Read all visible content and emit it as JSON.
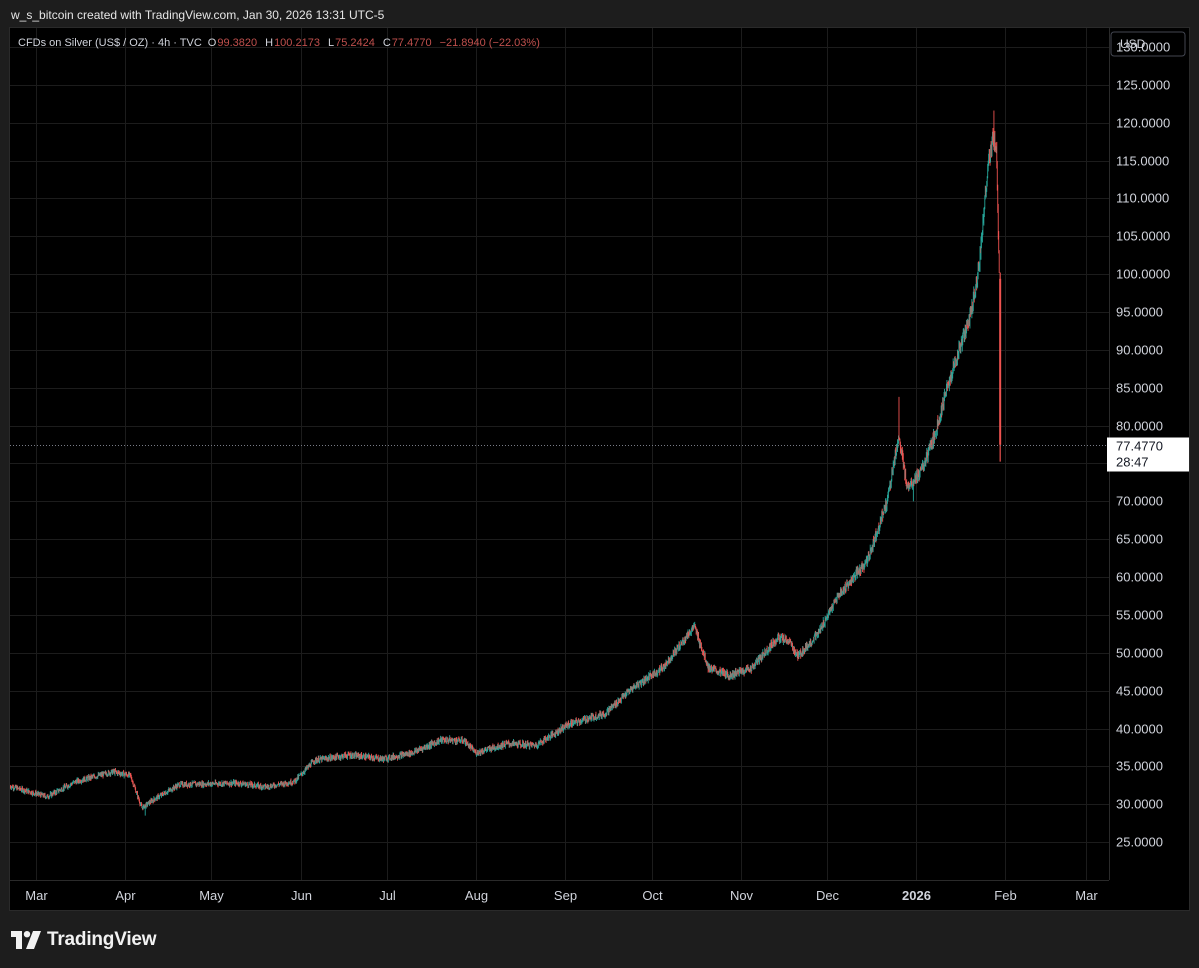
{
  "attribution": "w_s_bitcoin created with TradingView.com, Jan 30, 2026 13:31 UTC-5",
  "legend": {
    "symbol": "CFDs on Silver (US$ / OZ) · 4h · TVC",
    "o_label": "O",
    "o_value": "99.3820",
    "h_label": "H",
    "h_value": "100.2173",
    "l_label": "L",
    "l_value": "75.2424",
    "c_label": "C",
    "c_value": "77.4770",
    "change": "−21.8940 (−22.03%)"
  },
  "currency_button": "USD",
  "last_price": {
    "value": "77.4770",
    "countdown": "28:47"
  },
  "brand": "TradingView",
  "colors": {
    "up": "#26a69a",
    "down": "#ef5350",
    "grid": "#1c1c1c",
    "axis_text": "#d1d4dc",
    "legend_value": "#c0504d"
  },
  "chart_data": {
    "type": "candlestick",
    "title": "CFDs on Silver (US$ / OZ) · 4h · TVC",
    "ylabel": "USD",
    "ylim": [
      20,
      132.5
    ],
    "y_ticks": [
      "25.0000",
      "30.0000",
      "35.0000",
      "40.0000",
      "45.0000",
      "50.0000",
      "55.0000",
      "60.0000",
      "65.0000",
      "70.0000",
      "75.0000",
      "80.0000",
      "85.0000",
      "90.0000",
      "95.0000",
      "100.0000",
      "105.0000",
      "110.0000",
      "115.0000",
      "120.0000",
      "125.0000",
      "130.0000"
    ],
    "x_ticks": [
      "Mar",
      "Apr",
      "May",
      "Jun",
      "Jul",
      "Aug",
      "Sep",
      "Oct",
      "Nov",
      "Dec",
      "2026",
      "Feb",
      "Mar"
    ],
    "x_tick_dates": [
      "2025-03-01",
      "2025-04-01",
      "2025-05-01",
      "2025-06-01",
      "2025-07-01",
      "2025-08-01",
      "2025-09-01",
      "2025-10-01",
      "2025-11-01",
      "2025-12-01",
      "2026-01-01",
      "2026-02-01",
      "2026-03-01"
    ],
    "last_price": 77.477,
    "series": [
      {
        "anchors": [
          [
            "2025-02-20",
            32.4
          ],
          [
            "2025-03-05",
            31.0
          ],
          [
            "2025-03-15",
            33.0
          ],
          [
            "2025-03-28",
            34.3
          ],
          [
            "2025-04-03",
            33.8
          ],
          [
            "2025-04-07",
            29.5
          ],
          [
            "2025-04-11",
            30.6
          ],
          [
            "2025-04-20",
            32.6
          ],
          [
            "2025-05-10",
            32.8
          ],
          [
            "2025-05-20",
            32.3
          ],
          [
            "2025-05-30",
            33.0
          ],
          [
            "2025-06-06",
            35.8
          ],
          [
            "2025-06-18",
            36.5
          ],
          [
            "2025-06-30",
            36.0
          ],
          [
            "2025-07-10",
            36.8
          ],
          [
            "2025-07-20",
            38.5
          ],
          [
            "2025-07-28",
            38.4
          ],
          [
            "2025-08-01",
            36.8
          ],
          [
            "2025-08-12",
            38.0
          ],
          [
            "2025-08-22",
            37.8
          ],
          [
            "2025-09-02",
            40.5
          ],
          [
            "2025-09-15",
            42.0
          ],
          [
            "2025-09-25",
            45.5
          ],
          [
            "2025-10-05",
            48.0
          ],
          [
            "2025-10-16",
            53.5
          ],
          [
            "2025-10-21",
            48.0
          ],
          [
            "2025-10-28",
            47.0
          ],
          [
            "2025-11-05",
            48.0
          ],
          [
            "2025-11-14",
            52.0
          ],
          [
            "2025-11-18",
            51.5
          ],
          [
            "2025-11-21",
            49.5
          ],
          [
            "2025-11-28",
            52.5
          ],
          [
            "2025-12-05",
            57.5
          ],
          [
            "2025-12-15",
            62.0
          ],
          [
            "2025-12-22",
            70.0
          ],
          [
            "2025-12-26",
            78.5
          ],
          [
            "2025-12-29",
            72.0
          ],
          [
            "2026-01-03",
            74.0
          ],
          [
            "2026-01-07",
            78.0
          ],
          [
            "2026-01-12",
            85.0
          ],
          [
            "2026-01-16",
            90.0
          ],
          [
            "2026-01-20",
            94.5
          ],
          [
            "2026-01-23",
            101.0
          ],
          [
            "2026-01-26",
            114.0
          ],
          [
            "2026-01-28",
            118.0
          ],
          [
            "2026-01-29",
            116.5
          ],
          [
            "2026-01-30",
            99.4
          ]
        ],
        "last_candle": {
          "date": "2026-01-30",
          "open": 99.382,
          "high": 100.2173,
          "low": 75.2424,
          "close": 77.477
        },
        "notable_highs": [
          [
            "2025-12-26",
            83.8
          ],
          [
            "2026-01-28",
            121.6
          ]
        ],
        "notable_lows": [
          [
            "2025-04-08",
            28.5
          ],
          [
            "2025-12-31",
            70.0
          ]
        ]
      }
    ]
  }
}
